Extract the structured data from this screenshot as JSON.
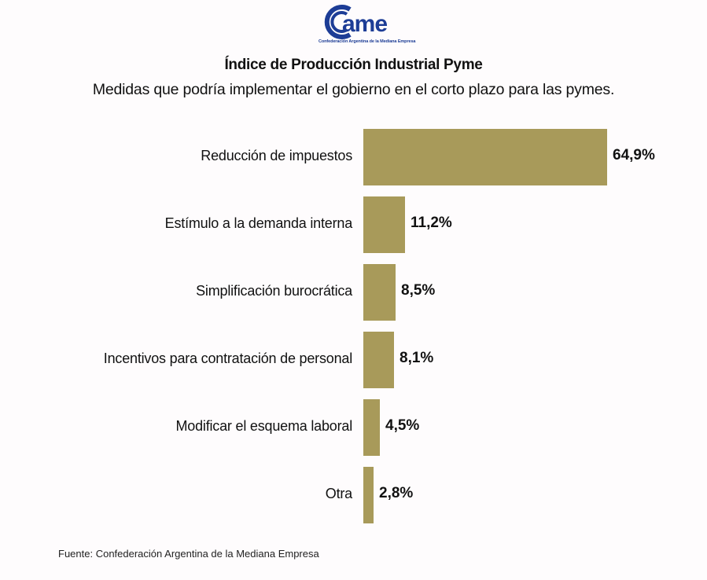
{
  "logo": {
    "text": "came",
    "subtitle": "Confederación Argentina de la Mediana Empresa",
    "color": "#1d3d96"
  },
  "chart_data": {
    "type": "bar",
    "orientation": "horizontal",
    "title": "Índice de Producción Industrial Pyme",
    "subtitle": "Medidas que podría implementar el gobierno en el corto plazo para las pymes.",
    "categories": [
      "Reducción de impuestos",
      "Estímulo a la demanda interna",
      "Simplificación burocrática",
      "Incentivos para contratación de personal",
      "Modificar el esquema laboral",
      "Otra"
    ],
    "values": [
      64.9,
      11.2,
      8.5,
      8.1,
      4.5,
      2.8
    ],
    "value_labels": [
      "64,9%",
      "11,2%",
      "8,5%",
      "8,1%",
      "4,5%",
      "2,8%"
    ],
    "unit": "%",
    "xlim": [
      0,
      64.9
    ],
    "grid": false,
    "legend": "none",
    "bar_color": "#a89a5a"
  },
  "source": "Fuente: Confederación Argentina de la Mediana Empresa"
}
